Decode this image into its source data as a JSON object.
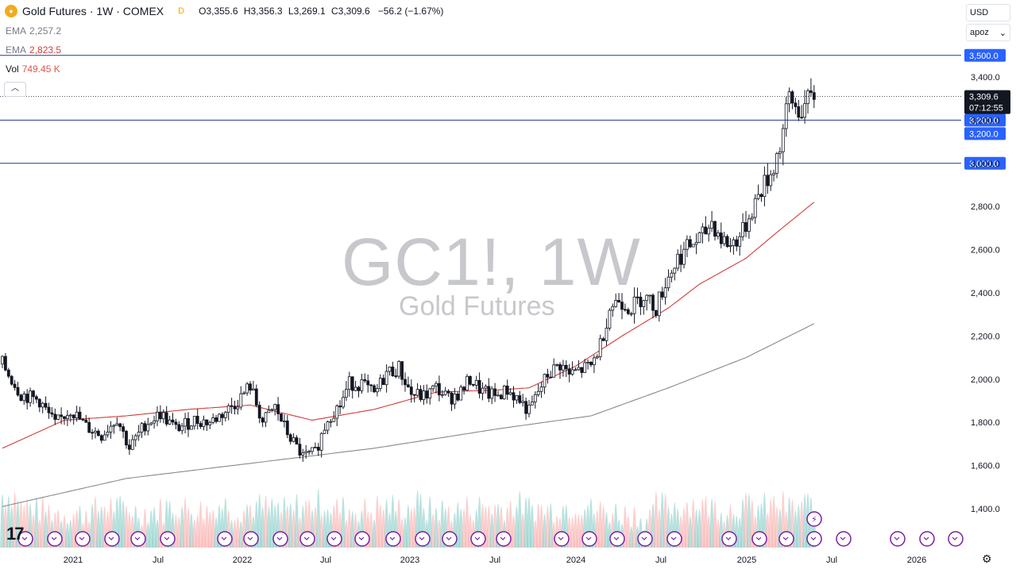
{
  "header": {
    "title": "Gold Futures · 1W · COMEX",
    "badge": "D",
    "open_label": "O",
    "open": "3,355.6",
    "high_label": "H",
    "high": "3,356.3",
    "low_label": "L",
    "low": "3,269.1",
    "close_label": "C",
    "close": "3,309.6",
    "change": "−56.2 (−1.67%)"
  },
  "indicators": {
    "ema1_label": "EMA",
    "ema1_value": "2,257.2",
    "ema2_label": "EMA",
    "ema2_value": "2,823.5",
    "vol_label": "Vol",
    "vol_value": "749.45 K"
  },
  "collapse_icon": "chevron-up-icon",
  "watermark": {
    "symbol": "GC1!, 1W",
    "name": "Gold Futures"
  },
  "currency": "USD",
  "scale_mode": "apoz",
  "settings_icon": "gear-icon",
  "logo_icon": "tradingview-logo",
  "colors": {
    "up": "#131722",
    "down": "#131722",
    "ema_fast": "#d23c3c",
    "ema_slow": "#8a8a8a",
    "hline": "#2962ff",
    "vol_up": "#80cbc4",
    "vol_down": "#f7a9a7",
    "event_circle": "#7b1fa2"
  },
  "chart_data": {
    "type": "candlestick",
    "y_tick_labels": [
      "1,400.0",
      "1,600.0",
      "1,800.0",
      "2,000.0",
      "2,200.0",
      "2,400.0",
      "2,600.0",
      "2,800.0",
      "3,000.0",
      "3,200.0",
      "3,400.0"
    ],
    "x_tick_labels": [
      "2021",
      "Jul",
      "2022",
      "Jul",
      "2023",
      "Jul",
      "2024",
      "Jul",
      "2025",
      "Jul",
      "2026"
    ],
    "ylim": [
      1300,
      3560
    ],
    "last_price": "3,309.6",
    "countdown": "07:12:55",
    "horizontal_lines": [
      {
        "value": 3500,
        "label": "3,500.0"
      },
      {
        "value": 3200,
        "label": "3,200.0"
      },
      {
        "value": 3000,
        "label": "3,000.0"
      }
    ],
    "extra_label": "3,200.0",
    "anchors": [
      [
        0,
        2070
      ],
      [
        6,
        1930
      ],
      [
        12,
        1900
      ],
      [
        17,
        1790
      ],
      [
        22,
        1860
      ],
      [
        27,
        1780
      ],
      [
        32,
        1740
      ],
      [
        37,
        1820
      ],
      [
        41,
        1680
      ],
      [
        46,
        1790
      ],
      [
        51,
        1840
      ],
      [
        56,
        1770
      ],
      [
        62,
        1810
      ],
      [
        67,
        1800
      ],
      [
        72,
        1850
      ],
      [
        76,
        1900
      ],
      [
        80,
        1970
      ],
      [
        84,
        1800
      ],
      [
        88,
        1870
      ],
      [
        92,
        1750
      ],
      [
        97,
        1640
      ],
      [
        101,
        1660
      ],
      [
        105,
        1820
      ],
      [
        109,
        1880
      ],
      [
        112,
        1980
      ],
      [
        116,
        1980
      ],
      [
        120,
        1925
      ],
      [
        124,
        2030
      ],
      [
        128,
        2050
      ],
      [
        132,
        1930
      ],
      [
        136,
        1920
      ],
      [
        140,
        1960
      ],
      [
        144,
        1910
      ],
      [
        148,
        1940
      ],
      [
        151,
        2000
      ],
      [
        155,
        1940
      ],
      [
        159,
        1920
      ],
      [
        163,
        1950
      ],
      [
        167,
        1900
      ],
      [
        170,
        1850
      ],
      [
        173,
        1940
      ],
      [
        176,
        2020
      ],
      [
        180,
        2070
      ],
      [
        183,
        2020
      ],
      [
        186,
        2040
      ],
      [
        190,
        2060
      ],
      [
        193,
        2160
      ],
      [
        196,
        2330
      ],
      [
        199,
        2370
      ],
      [
        203,
        2330
      ],
      [
        207,
        2390
      ],
      [
        211,
        2330
      ],
      [
        214,
        2450
      ],
      [
        218,
        2560
      ],
      [
        222,
        2620
      ],
      [
        226,
        2660
      ],
      [
        229,
        2730
      ],
      [
        232,
        2650
      ],
      [
        235,
        2620
      ],
      [
        239,
        2680
      ],
      [
        242,
        2790
      ],
      [
        245,
        2880
      ],
      [
        248,
        2950
      ],
      [
        251,
        3080
      ],
      [
        254,
        3300
      ],
      [
        257,
        3240
      ],
      [
        260,
        3280
      ],
      [
        262,
        3310
      ]
    ],
    "ema_fast_anchors": [
      [
        0,
        1680
      ],
      [
        20,
        1810
      ],
      [
        40,
        1830
      ],
      [
        60,
        1860
      ],
      [
        80,
        1880
      ],
      [
        100,
        1810
      ],
      [
        120,
        1860
      ],
      [
        140,
        1940
      ],
      [
        160,
        1950
      ],
      [
        170,
        1960
      ],
      [
        185,
        2060
      ],
      [
        200,
        2200
      ],
      [
        215,
        2330
      ],
      [
        225,
        2440
      ],
      [
        240,
        2560
      ],
      [
        250,
        2680
      ],
      [
        262,
        2820
      ]
    ],
    "ema_slow_anchors": [
      [
        0,
        1410
      ],
      [
        40,
        1540
      ],
      [
        80,
        1610
      ],
      [
        120,
        1680
      ],
      [
        160,
        1770
      ],
      [
        190,
        1830
      ],
      [
        215,
        1960
      ],
      [
        240,
        2100
      ],
      [
        262,
        2257
      ]
    ],
    "volume_peaks": [
      100,
      70,
      60,
      55,
      50,
      60,
      72,
      65,
      55,
      60,
      70,
      65,
      60,
      75,
      62,
      70,
      68,
      58,
      72,
      80,
      64,
      62,
      60,
      70,
      65,
      80,
      60,
      60,
      65,
      70,
      68,
      74,
      66,
      62,
      70,
      75,
      60,
      55,
      50,
      40,
      75,
      73,
      78,
      70,
      65,
      72,
      70,
      75,
      68,
      78
    ],
    "event_label": "⚡",
    "event_count": 25
  }
}
